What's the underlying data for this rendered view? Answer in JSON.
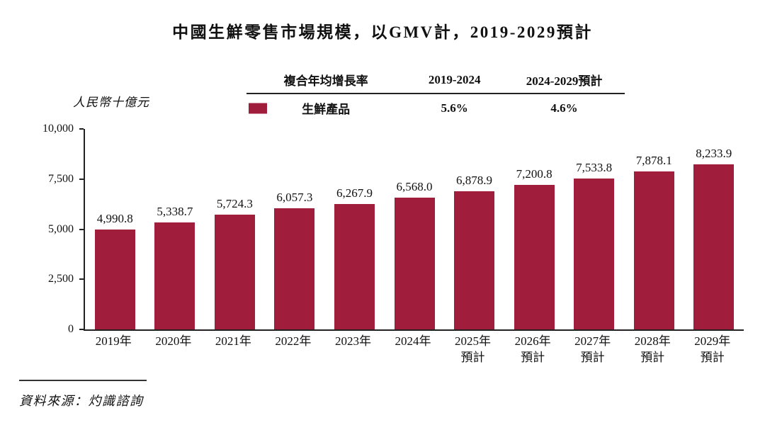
{
  "title": "中國生鮮零售市場規模，以GMV計，2019-2029預計",
  "y_axis_title": "人民幣十億元",
  "source": "資料來源：灼識諮詢",
  "legend": {
    "metric_header": "複合年均增長率",
    "period1_header": "2019-2024",
    "period2_header": "2024-2029預計",
    "series_name": "生鮮產品",
    "period1_value": "5.6%",
    "period2_value": "4.6%"
  },
  "colors": {
    "bar": "#A01E3C",
    "text": "#111111",
    "axis": "#222222"
  },
  "chart_data": {
    "type": "bar",
    "title": "中國生鮮零售市場規模，以GMV計，2019-2029預計",
    "xlabel": "",
    "ylabel": "人民幣十億元",
    "ylim": [
      0,
      10000
    ],
    "yticks": [
      0,
      2500,
      5000,
      7500,
      10000
    ],
    "ytick_labels": [
      "0",
      "2,500",
      "5,000",
      "7,500",
      "10,000"
    ],
    "grid": false,
    "legend_position": "top",
    "bar_color": "#A01E3C",
    "categories": [
      "2019年",
      "2020年",
      "2021年",
      "2022年",
      "2023年",
      "2024年",
      "2025年預計",
      "2026年預計",
      "2027年預計",
      "2028年預計",
      "2029年預計"
    ],
    "values": [
      4990.8,
      5338.7,
      5724.3,
      6057.3,
      6267.9,
      6568.0,
      6878.9,
      7200.8,
      7533.8,
      7878.1,
      8233.9
    ],
    "bars": [
      {
        "year": "2019年",
        "sub": "",
        "value": 4990.8,
        "label": "4,990.8"
      },
      {
        "year": "2020年",
        "sub": "",
        "value": 5338.7,
        "label": "5,338.7"
      },
      {
        "year": "2021年",
        "sub": "",
        "value": 5724.3,
        "label": "5,724.3"
      },
      {
        "year": "2022年",
        "sub": "",
        "value": 6057.3,
        "label": "6,057.3"
      },
      {
        "year": "2023年",
        "sub": "",
        "value": 6267.9,
        "label": "6,267.9"
      },
      {
        "year": "2024年",
        "sub": "",
        "value": 6568.0,
        "label": "6,568.0"
      },
      {
        "year": "2025年",
        "sub": "預計",
        "value": 6878.9,
        "label": "6,878.9"
      },
      {
        "year": "2026年",
        "sub": "預計",
        "value": 7200.8,
        "label": "7,200.8"
      },
      {
        "year": "2027年",
        "sub": "預計",
        "value": 7533.8,
        "label": "7,533.8"
      },
      {
        "year": "2028年",
        "sub": "預計",
        "value": 7878.1,
        "label": "7,878.1"
      },
      {
        "year": "2029年",
        "sub": "預計",
        "value": 8233.9,
        "label": "8,233.9"
      }
    ],
    "series": [
      {
        "name": "生鮮產品",
        "cagr_2019_2024": "5.6%",
        "cagr_2024_2029": "4.6%"
      }
    ]
  }
}
